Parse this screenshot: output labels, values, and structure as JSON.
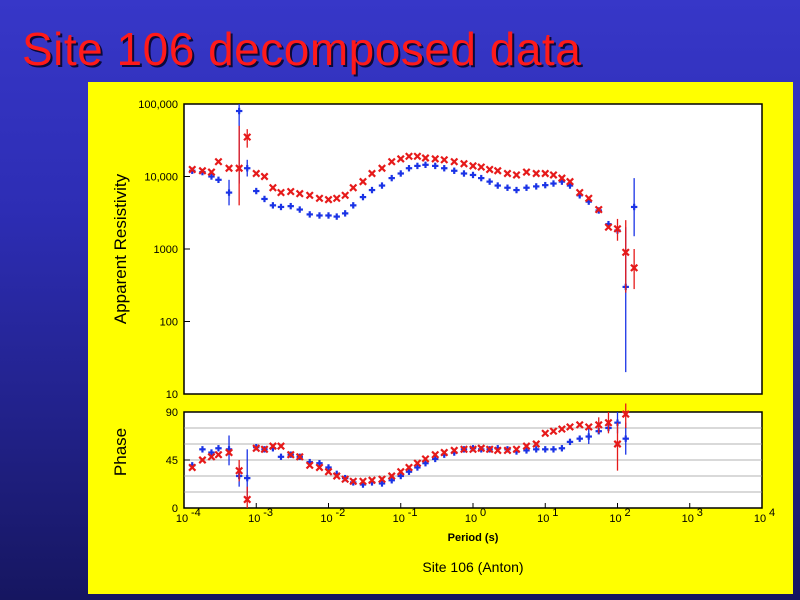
{
  "slide": {
    "title": "Site 106 decomposed data"
  },
  "colors": {
    "background": "#2d2db4",
    "panel": "#ffff00",
    "title": "#ff1a1a",
    "series_blue": "#1a33e6",
    "series_red": "#e61a1a"
  },
  "chart_data": [
    {
      "type": "scatter",
      "ylabel": "Apparent Resistivity",
      "y_log": true,
      "x_log": true,
      "ylim": [
        10,
        100000
      ],
      "xlim": [
        0.0001,
        10000
      ],
      "y_ticks": [
        "100,000",
        "10,000",
        "1000",
        "100",
        "10"
      ],
      "y_tick_values": [
        100000,
        10000,
        1000,
        100,
        10
      ],
      "grid": false,
      "series": [
        {
          "color": "blue",
          "marker": "plus",
          "points": [
            {
              "x": 0.00013,
              "y": 12000
            },
            {
              "x": 0.00018,
              "y": 11500
            },
            {
              "x": 0.00024,
              "y": 10000
            },
            {
              "x": 0.0003,
              "y": 9000
            },
            {
              "x": 0.00042,
              "y": 6000,
              "lo": 4000,
              "hi": 9000
            },
            {
              "x": 0.00058,
              "y": 80000,
              "lo": 8000,
              "hi": 100000
            },
            {
              "x": 0.00075,
              "y": 13000,
              "lo": 10000,
              "hi": 17000
            },
            {
              "x": 0.001,
              "y": 6300
            },
            {
              "x": 0.0013,
              "y": 4900
            },
            {
              "x": 0.0017,
              "y": 4000
            },
            {
              "x": 0.0022,
              "y": 3800
            },
            {
              "x": 0.003,
              "y": 3900
            },
            {
              "x": 0.004,
              "y": 3500
            },
            {
              "x": 0.0055,
              "y": 3000
            },
            {
              "x": 0.0075,
              "y": 2900
            },
            {
              "x": 0.01,
              "y": 2900
            },
            {
              "x": 0.013,
              "y": 2800
            },
            {
              "x": 0.017,
              "y": 3100
            },
            {
              "x": 0.022,
              "y": 4000
            },
            {
              "x": 0.03,
              "y": 5200
            },
            {
              "x": 0.04,
              "y": 6500
            },
            {
              "x": 0.055,
              "y": 7500
            },
            {
              "x": 0.075,
              "y": 9500
            },
            {
              "x": 0.1,
              "y": 11000
            },
            {
              "x": 0.13,
              "y": 13000
            },
            {
              "x": 0.17,
              "y": 14000
            },
            {
              "x": 0.22,
              "y": 14500
            },
            {
              "x": 0.3,
              "y": 14000
            },
            {
              "x": 0.4,
              "y": 13000
            },
            {
              "x": 0.55,
              "y": 12000
            },
            {
              "x": 0.75,
              "y": 11000
            },
            {
              "x": 1,
              "y": 10500
            },
            {
              "x": 1.3,
              "y": 9500
            },
            {
              "x": 1.7,
              "y": 8500
            },
            {
              "x": 2.2,
              "y": 7500
            },
            {
              "x": 3,
              "y": 7000
            },
            {
              "x": 4,
              "y": 6500
            },
            {
              "x": 5.5,
              "y": 7000
            },
            {
              "x": 7.5,
              "y": 7300
            },
            {
              "x": 10,
              "y": 7600
            },
            {
              "x": 13,
              "y": 8000
            },
            {
              "x": 17,
              "y": 8500
            },
            {
              "x": 22,
              "y": 7500
            },
            {
              "x": 30,
              "y": 5500
            },
            {
              "x": 40,
              "y": 4500
            },
            {
              "x": 55,
              "y": 3400
            },
            {
              "x": 75,
              "y": 2200
            },
            {
              "x": 100,
              "y": 1800
            },
            {
              "x": 130,
              "y": 300,
              "lo": 20,
              "hi": 2000
            },
            {
              "x": 170,
              "y": 3800,
              "lo": 1500,
              "hi": 9500
            }
          ]
        },
        {
          "color": "red",
          "marker": "cross",
          "points": [
            {
              "x": 0.00013,
              "y": 12500
            },
            {
              "x": 0.00018,
              "y": 12000
            },
            {
              "x": 0.00024,
              "y": 11500
            },
            {
              "x": 0.0003,
              "y": 16000
            },
            {
              "x": 0.00042,
              "y": 13000
            },
            {
              "x": 0.00058,
              "y": 13000,
              "lo": 4000,
              "hi": 50000
            },
            {
              "x": 0.00075,
              "y": 35000,
              "lo": 25000,
              "hi": 45000
            },
            {
              "x": 0.001,
              "y": 11000
            },
            {
              "x": 0.0013,
              "y": 10000
            },
            {
              "x": 0.0017,
              "y": 7000
            },
            {
              "x": 0.0022,
              "y": 6000
            },
            {
              "x": 0.003,
              "y": 6200
            },
            {
              "x": 0.004,
              "y": 5800
            },
            {
              "x": 0.0055,
              "y": 5500
            },
            {
              "x": 0.0075,
              "y": 5000
            },
            {
              "x": 0.01,
              "y": 4800
            },
            {
              "x": 0.013,
              "y": 5000
            },
            {
              "x": 0.017,
              "y": 5500
            },
            {
              "x": 0.022,
              "y": 7000
            },
            {
              "x": 0.03,
              "y": 8500
            },
            {
              "x": 0.04,
              "y": 11000
            },
            {
              "x": 0.055,
              "y": 13000
            },
            {
              "x": 0.075,
              "y": 16000
            },
            {
              "x": 0.1,
              "y": 17500
            },
            {
              "x": 0.13,
              "y": 19000
            },
            {
              "x": 0.17,
              "y": 19000
            },
            {
              "x": 0.22,
              "y": 18000
            },
            {
              "x": 0.3,
              "y": 17500
            },
            {
              "x": 0.4,
              "y": 17000
            },
            {
              "x": 0.55,
              "y": 16000
            },
            {
              "x": 0.75,
              "y": 15000
            },
            {
              "x": 1,
              "y": 14000
            },
            {
              "x": 1.3,
              "y": 13500
            },
            {
              "x": 1.7,
              "y": 12500
            },
            {
              "x": 2.2,
              "y": 12000
            },
            {
              "x": 3,
              "y": 11000
            },
            {
              "x": 4,
              "y": 10500
            },
            {
              "x": 5.5,
              "y": 11500
            },
            {
              "x": 7.5,
              "y": 11000
            },
            {
              "x": 10,
              "y": 11000
            },
            {
              "x": 13,
              "y": 10500
            },
            {
              "x": 17,
              "y": 9500
            },
            {
              "x": 22,
              "y": 8500
            },
            {
              "x": 30,
              "y": 6000
            },
            {
              "x": 40,
              "y": 5000
            },
            {
              "x": 55,
              "y": 3500
            },
            {
              "x": 75,
              "y": 2000
            },
            {
              "x": 100,
              "y": 1900,
              "lo": 1300,
              "hi": 2600
            },
            {
              "x": 130,
              "y": 900,
              "lo": 250,
              "hi": 2500
            },
            {
              "x": 170,
              "y": 550,
              "lo": 280,
              "hi": 1000
            }
          ]
        }
      ]
    },
    {
      "type": "scatter",
      "ylabel": "Phase",
      "xlabel": "Period (s)",
      "x_log": true,
      "xlim": [
        0.0001,
        10000
      ],
      "ylim": [
        0,
        90
      ],
      "y_ticks": [
        "90",
        "45",
        "0"
      ],
      "y_tick_values": [
        90,
        45,
        0
      ],
      "x_tick_values": [
        0.0001,
        0.001,
        0.01,
        0.1,
        1,
        10,
        100,
        1000,
        10000
      ],
      "x_ticks_mantissa": [
        "10",
        "10",
        "10",
        "10",
        "10",
        "10",
        "10",
        "10",
        "10"
      ],
      "x_ticks_exponent": [
        "-4",
        "-3",
        "-2",
        "-1",
        "0",
        "1",
        "2",
        "3",
        "4"
      ],
      "grid": true,
      "series": [
        {
          "color": "blue",
          "marker": "plus",
          "points": [
            {
              "x": 0.00013,
              "y": 40
            },
            {
              "x": 0.00018,
              "y": 55
            },
            {
              "x": 0.00024,
              "y": 52
            },
            {
              "x": 0.0003,
              "y": 56
            },
            {
              "x": 0.00042,
              "y": 55,
              "lo": 40,
              "hi": 68
            },
            {
              "x": 0.00058,
              "y": 30,
              "lo": 20,
              "hi": 40
            },
            {
              "x": 0.00075,
              "y": 28,
              "lo": 10,
              "hi": 55
            },
            {
              "x": 0.001,
              "y": 57
            },
            {
              "x": 0.0013,
              "y": 55
            },
            {
              "x": 0.0017,
              "y": 56
            },
            {
              "x": 0.0022,
              "y": 48
            },
            {
              "x": 0.003,
              "y": 50
            },
            {
              "x": 0.004,
              "y": 48
            },
            {
              "x": 0.0055,
              "y": 43
            },
            {
              "x": 0.0075,
              "y": 42
            },
            {
              "x": 0.01,
              "y": 38
            },
            {
              "x": 0.013,
              "y": 32
            },
            {
              "x": 0.017,
              "y": 28
            },
            {
              "x": 0.022,
              "y": 24
            },
            {
              "x": 0.03,
              "y": 22
            },
            {
              "x": 0.04,
              "y": 24
            },
            {
              "x": 0.055,
              "y": 23
            },
            {
              "x": 0.075,
              "y": 26
            },
            {
              "x": 0.1,
              "y": 30
            },
            {
              "x": 0.13,
              "y": 34
            },
            {
              "x": 0.17,
              "y": 38
            },
            {
              "x": 0.22,
              "y": 42
            },
            {
              "x": 0.3,
              "y": 46
            },
            {
              "x": 0.4,
              "y": 50
            },
            {
              "x": 0.55,
              "y": 52
            },
            {
              "x": 0.75,
              "y": 55
            },
            {
              "x": 1,
              "y": 56
            },
            {
              "x": 1.3,
              "y": 55
            },
            {
              "x": 1.7,
              "y": 55
            },
            {
              "x": 2.2,
              "y": 56
            },
            {
              "x": 3,
              "y": 55
            },
            {
              "x": 4,
              "y": 53
            },
            {
              "x": 5.5,
              "y": 54
            },
            {
              "x": 7.5,
              "y": 55
            },
            {
              "x": 10,
              "y": 55
            },
            {
              "x": 13,
              "y": 55
            },
            {
              "x": 17,
              "y": 56
            },
            {
              "x": 22,
              "y": 62
            },
            {
              "x": 30,
              "y": 65
            },
            {
              "x": 40,
              "y": 67,
              "lo": 60,
              "hi": 75
            },
            {
              "x": 55,
              "y": 72
            },
            {
              "x": 75,
              "y": 75
            },
            {
              "x": 100,
              "y": 80,
              "lo": 70,
              "hi": 90
            },
            {
              "x": 130,
              "y": 65,
              "lo": 50,
              "hi": 80
            }
          ]
        },
        {
          "color": "red",
          "marker": "cross",
          "points": [
            {
              "x": 0.00013,
              "y": 38
            },
            {
              "x": 0.00018,
              "y": 45
            },
            {
              "x": 0.00024,
              "y": 48
            },
            {
              "x": 0.0003,
              "y": 50
            },
            {
              "x": 0.00042,
              "y": 52
            },
            {
              "x": 0.00058,
              "y": 35,
              "lo": 25,
              "hi": 45
            },
            {
              "x": 0.00075,
              "y": 8,
              "lo": 0,
              "hi": 20
            },
            {
              "x": 0.001,
              "y": 56
            },
            {
              "x": 0.0013,
              "y": 55
            },
            {
              "x": 0.0017,
              "y": 58
            },
            {
              "x": 0.0022,
              "y": 58
            },
            {
              "x": 0.003,
              "y": 50
            },
            {
              "x": 0.004,
              "y": 48
            },
            {
              "x": 0.0055,
              "y": 40
            },
            {
              "x": 0.0075,
              "y": 38
            },
            {
              "x": 0.01,
              "y": 34
            },
            {
              "x": 0.013,
              "y": 30
            },
            {
              "x": 0.017,
              "y": 27
            },
            {
              "x": 0.022,
              "y": 25
            },
            {
              "x": 0.03,
              "y": 25
            },
            {
              "x": 0.04,
              "y": 26
            },
            {
              "x": 0.055,
              "y": 27
            },
            {
              "x": 0.075,
              "y": 30
            },
            {
              "x": 0.1,
              "y": 34
            },
            {
              "x": 0.13,
              "y": 38
            },
            {
              "x": 0.17,
              "y": 42
            },
            {
              "x": 0.22,
              "y": 46
            },
            {
              "x": 0.3,
              "y": 50
            },
            {
              "x": 0.4,
              "y": 52
            },
            {
              "x": 0.55,
              "y": 54
            },
            {
              "x": 0.75,
              "y": 55
            },
            {
              "x": 1,
              "y": 55
            },
            {
              "x": 1.3,
              "y": 56
            },
            {
              "x": 1.7,
              "y": 55
            },
            {
              "x": 2.2,
              "y": 54
            },
            {
              "x": 3,
              "y": 54
            },
            {
              "x": 4,
              "y": 55
            },
            {
              "x": 5.5,
              "y": 58
            },
            {
              "x": 7.5,
              "y": 60
            },
            {
              "x": 10,
              "y": 70
            },
            {
              "x": 13,
              "y": 72
            },
            {
              "x": 17,
              "y": 74
            },
            {
              "x": 22,
              "y": 76
            },
            {
              "x": 30,
              "y": 78
            },
            {
              "x": 40,
              "y": 76
            },
            {
              "x": 55,
              "y": 78,
              "lo": 70,
              "hi": 85
            },
            {
              "x": 75,
              "y": 80,
              "lo": 70,
              "hi": 90
            },
            {
              "x": 100,
              "y": 60,
              "lo": 35,
              "hi": 80
            },
            {
              "x": 130,
              "y": 88,
              "lo": 75,
              "hi": 100
            }
          ]
        }
      ]
    }
  ],
  "caption": "Site 106 (Anton)"
}
